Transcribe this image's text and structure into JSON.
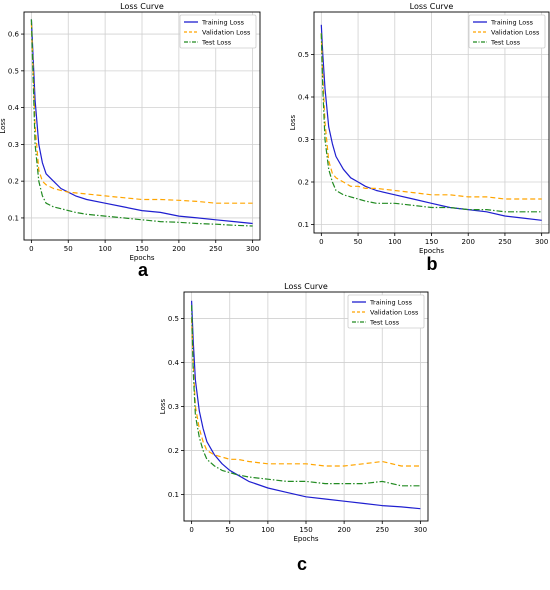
{
  "figure": {
    "panel_labels": [
      "a",
      "b",
      "c"
    ],
    "colors": {
      "training": "#1f1fd0",
      "validation": "#ffa500",
      "test": "#228b22",
      "grid": "#d0d0d0"
    }
  },
  "chart_data": [
    {
      "type": "line",
      "title": "Loss Curve",
      "xlabel": "Epochs",
      "ylabel": "Loss",
      "xlim": [
        -10,
        310
      ],
      "ylim": [
        0.04,
        0.66
      ],
      "xticks": [
        0,
        50,
        100,
        150,
        200,
        250,
        300
      ],
      "yticks": [
        0.1,
        0.2,
        0.3,
        0.4,
        0.5,
        0.6
      ],
      "grid": true,
      "legend": "top-right",
      "series": [
        {
          "name": "Training Loss",
          "style": "solid",
          "color": "#1f1fd0",
          "x": [
            0,
            2,
            5,
            10,
            15,
            20,
            30,
            40,
            50,
            60,
            75,
            100,
            125,
            150,
            175,
            200,
            225,
            250,
            275,
            300
          ],
          "values": [
            0.64,
            0.55,
            0.42,
            0.3,
            0.25,
            0.22,
            0.2,
            0.18,
            0.17,
            0.16,
            0.15,
            0.14,
            0.13,
            0.12,
            0.115,
            0.105,
            0.1,
            0.095,
            0.09,
            0.085
          ]
        },
        {
          "name": "Validation Loss",
          "style": "dashed",
          "color": "#ffa500",
          "x": [
            0,
            2,
            5,
            10,
            15,
            20,
            30,
            40,
            50,
            60,
            75,
            100,
            125,
            150,
            175,
            200,
            225,
            250,
            275,
            300
          ],
          "values": [
            0.63,
            0.52,
            0.35,
            0.23,
            0.2,
            0.19,
            0.18,
            0.175,
            0.17,
            0.168,
            0.165,
            0.16,
            0.155,
            0.15,
            0.15,
            0.148,
            0.145,
            0.14,
            0.14,
            0.14
          ]
        },
        {
          "name": "Test Loss",
          "style": "dashdot",
          "color": "#228b22",
          "x": [
            0,
            2,
            5,
            10,
            15,
            20,
            30,
            40,
            50,
            60,
            75,
            100,
            125,
            150,
            175,
            200,
            225,
            250,
            275,
            300
          ],
          "values": [
            0.64,
            0.5,
            0.3,
            0.2,
            0.16,
            0.14,
            0.13,
            0.125,
            0.12,
            0.115,
            0.11,
            0.105,
            0.1,
            0.095,
            0.09,
            0.088,
            0.085,
            0.083,
            0.08,
            0.078
          ]
        }
      ]
    },
    {
      "type": "line",
      "title": "Loss Curve",
      "xlabel": "Epochs",
      "ylabel": "Loss",
      "xlim": [
        -10,
        310
      ],
      "ylim": [
        0.08,
        0.6
      ],
      "xticks": [
        0,
        50,
        100,
        150,
        200,
        250,
        300
      ],
      "yticks": [
        0.1,
        0.2,
        0.3,
        0.4,
        0.5
      ],
      "grid": true,
      "legend": "top-right",
      "series": [
        {
          "name": "Training Loss",
          "style": "solid",
          "color": "#1f1fd0",
          "x": [
            0,
            2,
            5,
            10,
            15,
            20,
            30,
            40,
            50,
            60,
            75,
            100,
            125,
            150,
            175,
            200,
            225,
            250,
            275,
            300
          ],
          "values": [
            0.57,
            0.5,
            0.42,
            0.33,
            0.29,
            0.26,
            0.23,
            0.21,
            0.2,
            0.19,
            0.18,
            0.17,
            0.16,
            0.15,
            0.14,
            0.135,
            0.13,
            0.12,
            0.115,
            0.11
          ]
        },
        {
          "name": "Validation Loss",
          "style": "dashed",
          "color": "#ffa500",
          "x": [
            0,
            2,
            5,
            10,
            15,
            20,
            30,
            40,
            50,
            60,
            75,
            100,
            125,
            150,
            175,
            200,
            225,
            250,
            275,
            300
          ],
          "values": [
            0.55,
            0.45,
            0.34,
            0.25,
            0.22,
            0.21,
            0.2,
            0.19,
            0.19,
            0.185,
            0.185,
            0.18,
            0.175,
            0.17,
            0.17,
            0.165,
            0.165,
            0.16,
            0.16,
            0.16
          ]
        },
        {
          "name": "Test Loss",
          "style": "dashdot",
          "color": "#228b22",
          "x": [
            0,
            2,
            5,
            10,
            15,
            20,
            30,
            40,
            50,
            60,
            75,
            100,
            125,
            150,
            175,
            200,
            225,
            250,
            275,
            300
          ],
          "values": [
            0.55,
            0.42,
            0.3,
            0.23,
            0.2,
            0.18,
            0.17,
            0.165,
            0.16,
            0.155,
            0.15,
            0.15,
            0.145,
            0.14,
            0.14,
            0.135,
            0.135,
            0.13,
            0.13,
            0.13
          ]
        }
      ]
    },
    {
      "type": "line",
      "title": "Loss Curve",
      "xlabel": "Epochs",
      "ylabel": "Loss",
      "xlim": [
        -10,
        310
      ],
      "ylim": [
        0.04,
        0.56
      ],
      "xticks": [
        0,
        50,
        100,
        150,
        200,
        250,
        300
      ],
      "yticks": [
        0.1,
        0.2,
        0.3,
        0.4,
        0.5
      ],
      "grid": true,
      "legend": "top-right",
      "series": [
        {
          "name": "Training Loss",
          "style": "solid",
          "color": "#1f1fd0",
          "x": [
            0,
            2,
            5,
            10,
            15,
            20,
            30,
            40,
            50,
            60,
            75,
            100,
            125,
            150,
            175,
            200,
            225,
            250,
            275,
            300
          ],
          "values": [
            0.54,
            0.45,
            0.36,
            0.29,
            0.25,
            0.22,
            0.19,
            0.17,
            0.155,
            0.145,
            0.13,
            0.115,
            0.105,
            0.095,
            0.09,
            0.085,
            0.08,
            0.075,
            0.072,
            0.068
          ]
        },
        {
          "name": "Validation Loss",
          "style": "dashed",
          "color": "#ffa500",
          "x": [
            0,
            2,
            5,
            10,
            15,
            20,
            30,
            40,
            50,
            60,
            75,
            100,
            125,
            150,
            175,
            200,
            225,
            250,
            275,
            300
          ],
          "values": [
            0.5,
            0.4,
            0.3,
            0.25,
            0.22,
            0.2,
            0.19,
            0.185,
            0.18,
            0.18,
            0.175,
            0.17,
            0.17,
            0.17,
            0.165,
            0.165,
            0.17,
            0.175,
            0.165,
            0.165
          ]
        },
        {
          "name": "Test Loss",
          "style": "dashdot",
          "color": "#228b22",
          "x": [
            0,
            2,
            5,
            10,
            15,
            20,
            30,
            40,
            50,
            60,
            75,
            100,
            125,
            150,
            175,
            200,
            225,
            250,
            275,
            300
          ],
          "values": [
            0.53,
            0.38,
            0.28,
            0.23,
            0.2,
            0.18,
            0.165,
            0.155,
            0.15,
            0.145,
            0.14,
            0.135,
            0.13,
            0.13,
            0.125,
            0.125,
            0.125,
            0.13,
            0.12,
            0.12
          ]
        }
      ]
    }
  ]
}
